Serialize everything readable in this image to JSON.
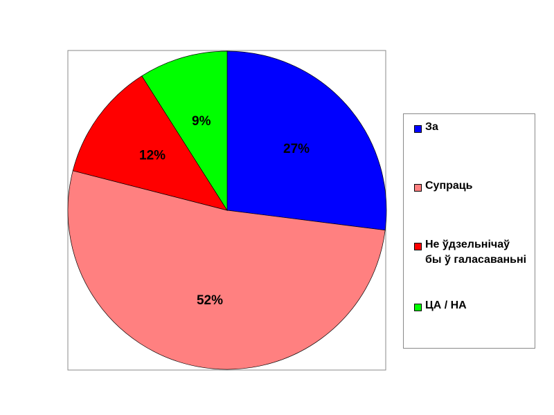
{
  "chart_data": {
    "type": "pie",
    "categories": [
      "За",
      "Супраць",
      "Не ўдзельнічаў бы ў галасаваньні",
      "ЦА / НА"
    ],
    "values": [
      27,
      52,
      12,
      9
    ],
    "value_labels": [
      "27%",
      "52%",
      "12%",
      "9%"
    ],
    "colors": [
      "#0000ff",
      "#ff8080",
      "#ff0000",
      "#00ff00"
    ],
    "legend": "right"
  }
}
